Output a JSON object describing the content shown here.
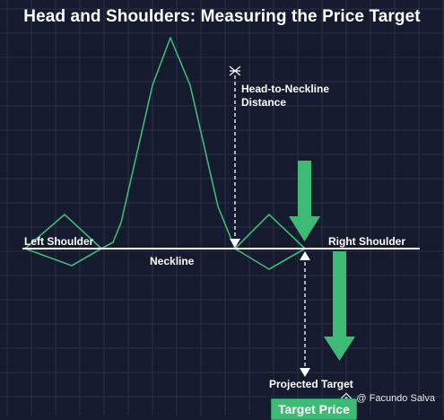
{
  "title": "Head and Shoulders: Measuring the Price Target",
  "labels": {
    "left_shoulder": "Left Shoulder",
    "right_shoulder": "Right Shoulder",
    "neckline": "Neckline",
    "head_distance_line1": "Head-to-Neckline",
    "head_distance_line2": "Distance",
    "projected_target": "Projected Target",
    "target_price": "Target Price"
  },
  "credit": "@ Facundo Salva",
  "colors": {
    "background": "#161a2e",
    "grid": "#2a3048",
    "price_line": "#3dbb74",
    "arrow": "#3dbb74",
    "neckline": "#ffffff",
    "text": "#ffffff"
  }
}
